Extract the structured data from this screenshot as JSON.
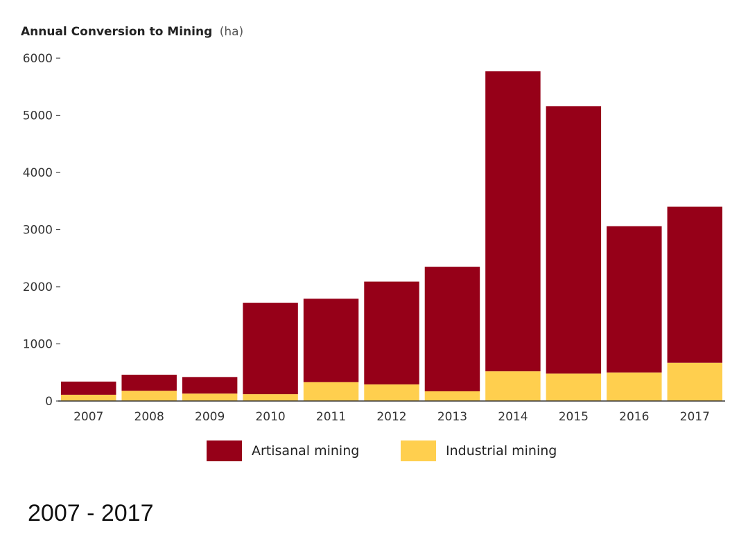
{
  "chart_data": {
    "type": "bar",
    "stacked": true,
    "title": "Annual Conversion to Mining",
    "title_unit": "(ha)",
    "categories": [
      "2007",
      "2008",
      "2009",
      "2010",
      "2011",
      "2012",
      "2013",
      "2014",
      "2015",
      "2016",
      "2017"
    ],
    "series": [
      {
        "name": "Industrial mining",
        "color": "#FFCF4E",
        "values": [
          110,
          180,
          130,
          120,
          330,
          290,
          170,
          520,
          480,
          500,
          670
        ]
      },
      {
        "name": "Artisanal mining",
        "color": "#960018",
        "values": [
          230,
          280,
          290,
          1600,
          1460,
          1800,
          2180,
          5250,
          4680,
          2560,
          2730
        ]
      }
    ],
    "ylim": [
      0,
      6000
    ],
    "yticks": [
      "0",
      "1000",
      "2000",
      "3000",
      "4000",
      "5000",
      "6000"
    ],
    "legend": {
      "placement": "bottom",
      "order": [
        "Artisanal mining",
        "Industrial mining"
      ]
    },
    "grid": false
  },
  "caption": "2007 - 2017"
}
